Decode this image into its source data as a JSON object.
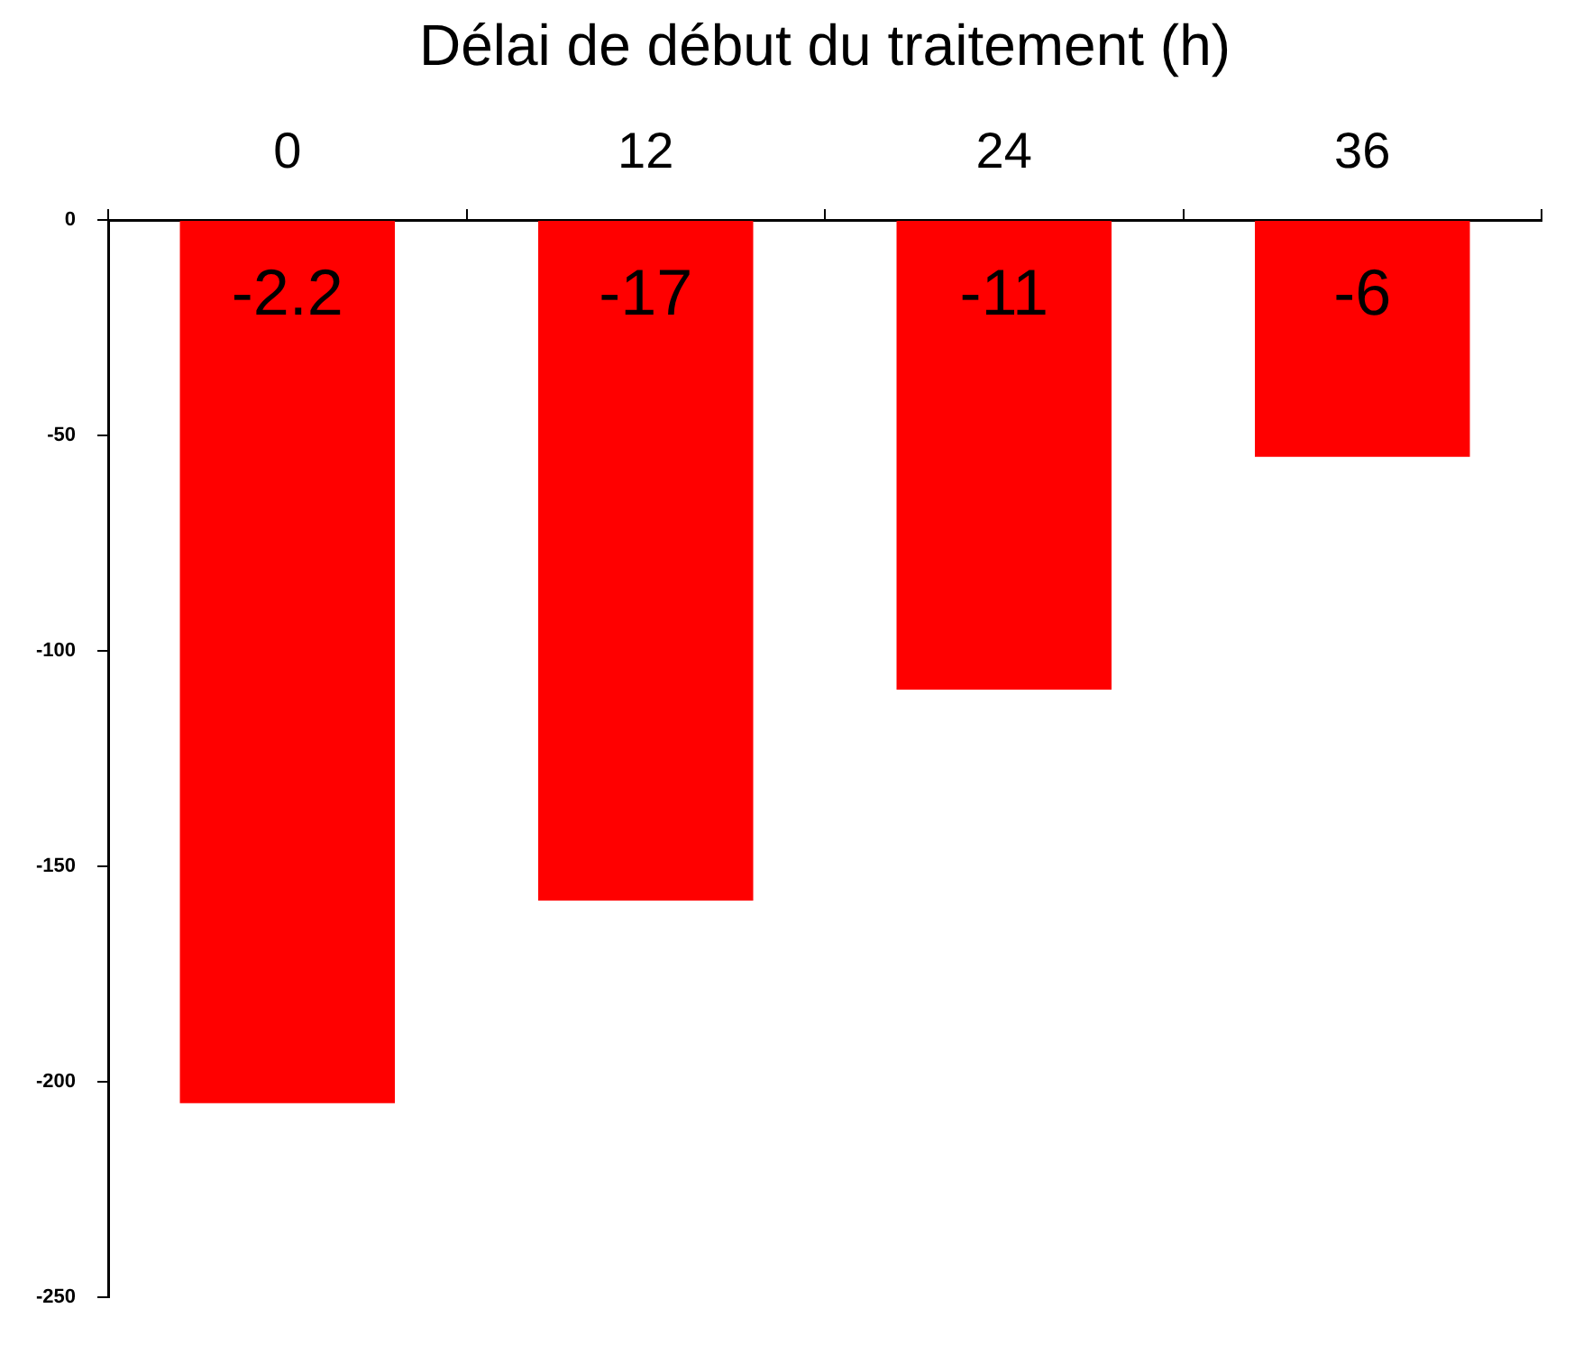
{
  "chart_data": {
    "type": "bar",
    "xlabel": "Délai de début du traitement (h)",
    "categories": [
      "0",
      "12",
      "24",
      "36"
    ],
    "values": [
      -205,
      -158,
      -109,
      -55
    ],
    "color": "#ff0000",
    "annotations": [
      "-2.2",
      "-17",
      "-11",
      "-6"
    ],
    "ylim": [
      -250,
      0
    ],
    "yticks": [
      -250,
      -200,
      -150,
      -100,
      -50,
      0
    ],
    "grid": false,
    "legend": false
  }
}
